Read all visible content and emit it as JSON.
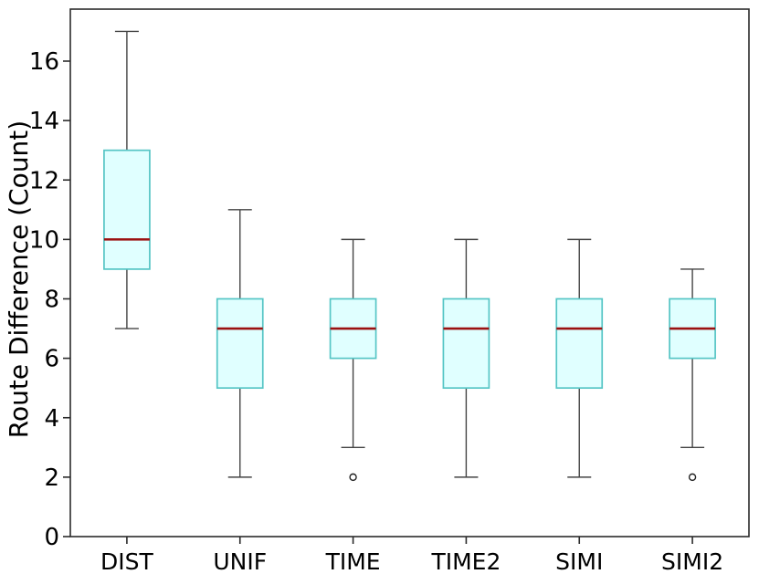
{
  "chart_data": {
    "type": "boxplot",
    "title": "",
    "xlabel": "",
    "ylabel": "Route Difference (Count)",
    "categories": [
      "DIST",
      "UNIF",
      "TIME",
      "TIME2",
      "SIMI",
      "SIMI2"
    ],
    "yticks": [
      0,
      2,
      4,
      6,
      8,
      10,
      12,
      14,
      16
    ],
    "ylim": [
      0,
      17.75
    ],
    "series": [
      {
        "label": "DIST",
        "whislo": 7,
        "q1": 9,
        "med": 10,
        "q3": 13,
        "whishi": 17,
        "fliers": []
      },
      {
        "label": "UNIF",
        "whislo": 2,
        "q1": 5,
        "med": 7,
        "q3": 8,
        "whishi": 11,
        "fliers": []
      },
      {
        "label": "TIME",
        "whislo": 3,
        "q1": 6,
        "med": 7,
        "q3": 8,
        "whishi": 10,
        "fliers": [
          2
        ]
      },
      {
        "label": "TIME2",
        "whislo": 2,
        "q1": 5,
        "med": 7,
        "q3": 8,
        "whishi": 10,
        "fliers": []
      },
      {
        "label": "SIMI",
        "whislo": 2,
        "q1": 5,
        "med": 7,
        "q3": 8,
        "whishi": 10,
        "fliers": []
      },
      {
        "label": "SIMI2",
        "whislo": 3,
        "q1": 6,
        "med": 7,
        "q3": 8,
        "whishi": 9,
        "fliers": [
          2
        ]
      }
    ],
    "colors": {
      "box_fill": "#e0ffff",
      "box_edge": "#55c5c5",
      "median": "#9b1111",
      "whisker": "#444444",
      "flier_edge": "#222222",
      "axis": "#2b2b2b",
      "text": "#000000",
      "background": "#ffffff"
    },
    "layout_hints": {
      "grid": false,
      "legend": null,
      "box_orientation": "vertical"
    }
  }
}
